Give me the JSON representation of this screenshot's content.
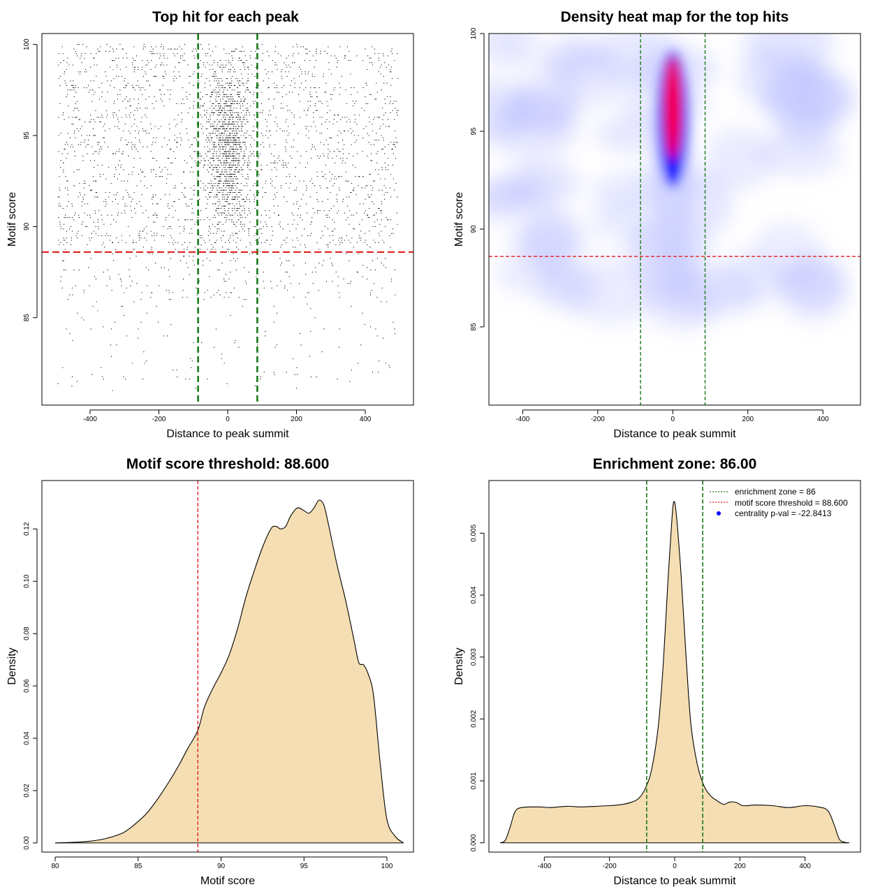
{
  "chart_data": [
    {
      "type": "scatter",
      "title": "Top hit for each peak",
      "xlabel": "Distance to peak summit",
      "ylabel": "Motif score",
      "xlim": [
        -540,
        540
      ],
      "ylim": [
        80.2,
        100.6
      ],
      "xticks": [
        -400,
        -200,
        0,
        200,
        400
      ],
      "yticks": [
        85,
        90,
        95,
        100
      ],
      "xtick_labels": [
        "-400",
        "-200",
        "0",
        "200",
        "400"
      ],
      "ytick_labels": [
        "85",
        "90",
        "95",
        "100"
      ],
      "reference_lines": {
        "vertical": [
          -86,
          86
        ],
        "horizontal": [
          88.6
        ],
        "vertical_color": "#1a7a1a",
        "horizontal_color": "#e02020"
      },
      "point_distribution": {
        "x_range": [
          -495,
          495
        ],
        "y_range": [
          81,
          100
        ],
        "central_concentration_x": [
          -60,
          60
        ],
        "approx_points": 8000
      },
      "grid": false
    },
    {
      "type": "heatmap",
      "title": "Density heat map for the top hits",
      "xlabel": "Distance to peak summit",
      "ylabel": "Motif score",
      "xlim": [
        -490,
        500
      ],
      "ylim": [
        81,
        100
      ],
      "xticks": [
        -400,
        -200,
        0,
        200,
        400
      ],
      "yticks": [
        85,
        90,
        95,
        100
      ],
      "xtick_labels": [
        "-400",
        "-200",
        "0",
        "200",
        "400"
      ],
      "ytick_labels": [
        "85",
        "90",
        "95",
        "100"
      ],
      "peak": {
        "x": 0,
        "y": 96.2,
        "x_spread": 30,
        "y_range": [
          88.5,
          99.7
        ]
      },
      "colors": {
        "low": "#ffffff",
        "mid": "#0000ff",
        "high": "#ff0000"
      },
      "reference_lines": {
        "vertical": [
          -86,
          86
        ],
        "horizontal": [
          88.6
        ],
        "vertical_color": "#1a7a1a",
        "horizontal_color": "#e02020"
      },
      "grid": false
    },
    {
      "type": "area",
      "title": "Motif score threshold: 88.600",
      "xlabel": "Motif score",
      "ylabel": "Density",
      "xlim": [
        79.2,
        101.6
      ],
      "ylim": [
        -0.0035,
        0.1385
      ],
      "xticks": [
        80,
        85,
        90,
        95,
        100
      ],
      "yticks": [
        0.0,
        0.02,
        0.04,
        0.06,
        0.08,
        0.1,
        0.12
      ],
      "xtick_labels": [
        "80",
        "85",
        "90",
        "95",
        "100"
      ],
      "ytick_labels": [
        "0.00",
        "0.02",
        "0.04",
        "0.06",
        "0.08",
        "0.10",
        "0.12"
      ],
      "x": [
        80,
        81,
        82,
        83,
        84,
        84.5,
        85,
        85.5,
        86,
        86.5,
        87,
        87.5,
        88,
        88.6,
        89,
        89.5,
        90,
        90.5,
        91,
        91.5,
        92,
        92.5,
        93,
        93.3,
        93.6,
        93.9,
        94.2,
        94.6,
        95,
        95.3,
        95.6,
        95.9,
        96.2,
        96.5,
        97,
        97.5,
        98,
        98.3,
        98.6,
        98.9,
        99.2,
        99.6,
        100,
        100.5,
        101
      ],
      "values": [
        0.0,
        0.0002,
        0.0006,
        0.0016,
        0.0036,
        0.0056,
        0.0082,
        0.0112,
        0.0152,
        0.0198,
        0.0248,
        0.0302,
        0.0362,
        0.043,
        0.052,
        0.059,
        0.065,
        0.072,
        0.082,
        0.094,
        0.104,
        0.113,
        0.12,
        0.121,
        0.12,
        0.121,
        0.125,
        0.128,
        0.127,
        0.126,
        0.128,
        0.131,
        0.129,
        0.121,
        0.106,
        0.093,
        0.078,
        0.069,
        0.068,
        0.064,
        0.056,
        0.03,
        0.009,
        0.0025,
        0.0
      ],
      "fill_color": "#f5deb3",
      "threshold": 88.6,
      "threshold_color": "#e02020",
      "grid": false
    },
    {
      "type": "area",
      "title": "Enrichment zone: 86.00",
      "xlabel": "Distance to peak summit",
      "ylabel": "Density",
      "xlim": [
        -570,
        570
      ],
      "ylim": [
        -0.00015,
        0.00585
      ],
      "xticks": [
        -400,
        -200,
        0,
        200,
        400
      ],
      "yticks": [
        0.0,
        0.001,
        0.002,
        0.003,
        0.004,
        0.005
      ],
      "xtick_labels": [
        "-400",
        "-200",
        "0",
        "200",
        "400"
      ],
      "ytick_labels": [
        "0.000",
        "0.001",
        "0.002",
        "0.003",
        "0.004",
        "0.005"
      ],
      "x": [
        -535,
        -520,
        -505,
        -490,
        -470,
        -420,
        -380,
        -330,
        -290,
        -240,
        -200,
        -160,
        -130,
        -110,
        -90,
        -70,
        -50,
        -35,
        -20,
        -10,
        -5,
        0,
        5,
        10,
        20,
        35,
        50,
        70,
        90,
        110,
        130,
        150,
        170,
        190,
        210,
        250,
        300,
        350,
        400,
        440,
        470,
        490,
        505,
        520,
        535
      ],
      "values": [
        0.0,
        4e-05,
        0.00025,
        0.0005,
        0.00057,
        0.00058,
        0.00057,
        0.00059,
        0.00058,
        0.00059,
        0.0006,
        0.00062,
        0.00066,
        0.00072,
        0.00088,
        0.0012,
        0.0019,
        0.0029,
        0.0043,
        0.0051,
        0.00545,
        0.0055,
        0.0053,
        0.005,
        0.0043,
        0.003,
        0.0019,
        0.00125,
        0.00092,
        0.00076,
        0.00068,
        0.00062,
        0.00066,
        0.00065,
        0.0006,
        0.00061,
        0.0006,
        0.00057,
        0.0006,
        0.00058,
        0.00052,
        0.00028,
        6e-05,
        1e-05,
        0.0
      ],
      "fill_color": "#f5deb3",
      "enrichment_lines": [
        -86,
        86
      ],
      "enrichment_color": "#1a7a1a",
      "legend": {
        "placement": "top-right",
        "entries": [
          {
            "label": "enrichment zone = 86",
            "color": "#1a7a1a",
            "style": "dotted-line"
          },
          {
            "label": "motif score threshold = 88.600",
            "color": "#e02020",
            "style": "dotted-line"
          },
          {
            "label": "centrality p-val = -22.8413",
            "color": "#0000ff",
            "style": "point"
          }
        ]
      },
      "grid": false
    }
  ]
}
